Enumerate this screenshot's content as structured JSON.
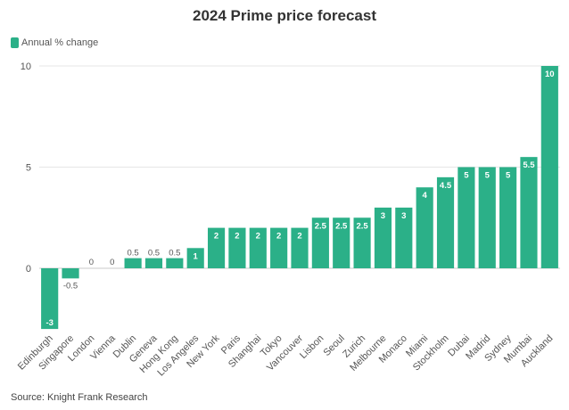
{
  "chart_data": {
    "type": "bar",
    "title": "2024 Prime price forecast",
    "legend": {
      "label": "Annual % change",
      "position": "top-left"
    },
    "categories": [
      "Edinburgh",
      "Singapore",
      "London",
      "Vienna",
      "Dublin",
      "Geneva",
      "Hong Kong",
      "Los Angeles",
      "New York",
      "Paris",
      "Shanghai",
      "Tokyo",
      "Vancouver",
      "Lisbon",
      "Seoul",
      "Zurich",
      "Melbourne",
      "Monaco",
      "Miami",
      "Stockholm",
      "Dubai",
      "Madrid",
      "Sydney",
      "Mumbai",
      "Auckland"
    ],
    "values": [
      -3,
      -0.5,
      0,
      0,
      0.5,
      0.5,
      0.5,
      1,
      2,
      2,
      2,
      2,
      2,
      2.5,
      2.5,
      2.5,
      3,
      3,
      4,
      4.5,
      5,
      5,
      5,
      5.5,
      10
    ],
    "data_labels": [
      "-3",
      "-0.5",
      "0",
      "0",
      "0.5",
      "0.5",
      "0.5",
      "1",
      "2",
      "2",
      "2",
      "2",
      "2",
      "2.5",
      "2.5",
      "2.5",
      "3",
      "3",
      "4",
      "4.5",
      "5",
      "5",
      "5",
      "5.5",
      "10"
    ],
    "yticks": [
      "0",
      "5",
      "10"
    ],
    "ylim": [
      -3,
      10
    ],
    "grid": true,
    "color": "#2bb088",
    "source": "Source: Knight Frank Research"
  }
}
